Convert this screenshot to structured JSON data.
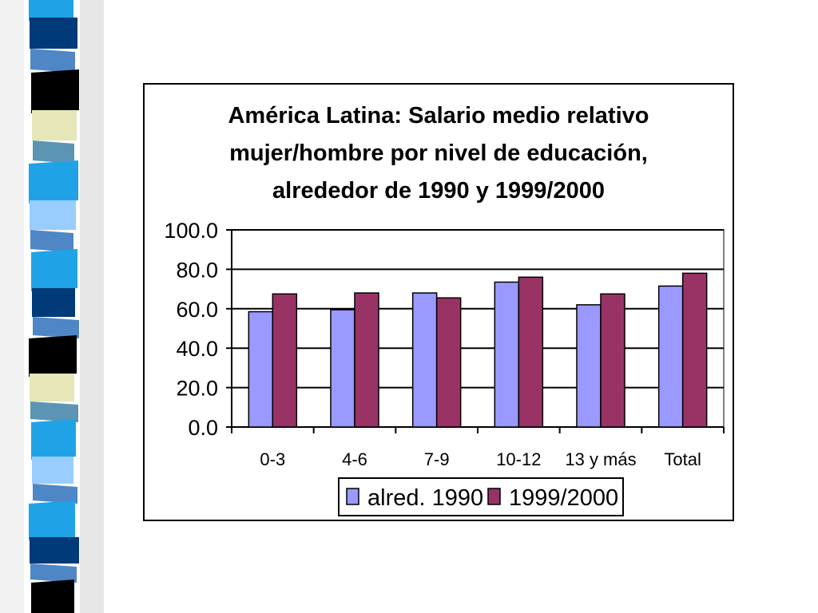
{
  "chart_data": {
    "type": "bar",
    "title_lines": [
      "América Latina: Salario medio relativo",
      "mujer/hombre por nivel de educación,",
      "alrededor de 1990 y 1999/2000"
    ],
    "categories": [
      "0-3",
      "4-6",
      "7-9",
      "10-12",
      "13 y más",
      "Total"
    ],
    "series": [
      {
        "name": "alred. 1990",
        "values": [
          58.5,
          59.5,
          68.0,
          73.5,
          62.0,
          71.5
        ],
        "color": "#9999ff"
      },
      {
        "name": "1999/2000",
        "values": [
          67.5,
          68.0,
          65.5,
          76.0,
          67.5,
          78.0
        ],
        "color": "#993366"
      }
    ],
    "yticks": [
      "0.0",
      "20.0",
      "40.0",
      "60.0",
      "80.0",
      "100.0"
    ],
    "ylim": [
      0,
      100
    ],
    "grid": true,
    "legend_position": "bottom"
  },
  "decor": {
    "strip_palette": [
      "#1fa3e6",
      "#003a78",
      "#4f86c6",
      "#000000",
      "#e6e6b8",
      "#5b95b3",
      "#1fa3e6",
      "#99ccff",
      "#4f86c6"
    ]
  }
}
